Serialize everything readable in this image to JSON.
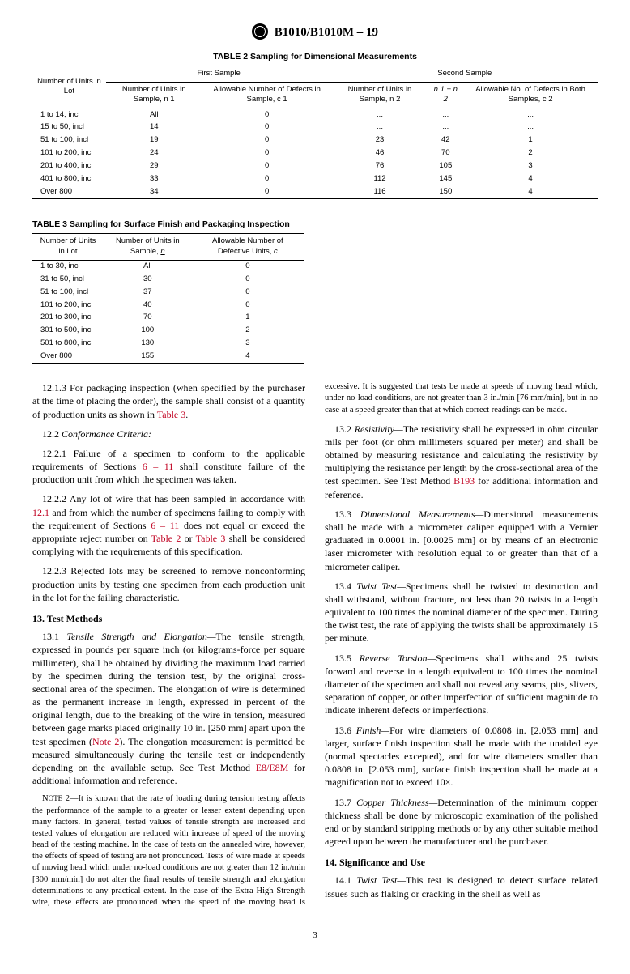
{
  "header": "B1010/B1010M – 19",
  "table2": {
    "caption": "TABLE 2 Sampling for Dimensional Measurements",
    "group_first": "First Sample",
    "group_second": "Second Sample",
    "cols": {
      "lot": "Number of Units in Lot",
      "n1": "Number of Units in Sample, n 1",
      "c1": "Allowable Number of Defects in Sample, c 1",
      "n2": "Number of Units in Sample, n 2",
      "n1n2": "n 1 + n 2",
      "c2": "Allowable No. of Defects in Both Samples, c 2"
    },
    "rows": [
      {
        "lot": "1 to 14, incl",
        "n1": "All",
        "c1": "0",
        "n2": "...",
        "n1n2": "...",
        "c2": "..."
      },
      {
        "lot": "15 to 50, incl",
        "n1": "14",
        "c1": "0",
        "n2": "...",
        "n1n2": "...",
        "c2": "..."
      },
      {
        "lot": "51 to 100, incl",
        "n1": "19",
        "c1": "0",
        "n2": "23",
        "n1n2": "42",
        "c2": "1"
      },
      {
        "lot": "101 to 200, incl",
        "n1": "24",
        "c1": "0",
        "n2": "46",
        "n1n2": "70",
        "c2": "2"
      },
      {
        "lot": "201 to 400, incl",
        "n1": "29",
        "c1": "0",
        "n2": "76",
        "n1n2": "105",
        "c2": "3"
      },
      {
        "lot": "401 to 800, incl",
        "n1": "33",
        "c1": "0",
        "n2": "112",
        "n1n2": "145",
        "c2": "4"
      },
      {
        "lot": "Over 800",
        "n1": "34",
        "c1": "0",
        "n2": "116",
        "n1n2": "150",
        "c2": "4"
      }
    ]
  },
  "table3": {
    "caption": "TABLE 3 Sampling for Surface Finish and Packaging Inspection",
    "cols": {
      "lot": "Number of Units in Lot",
      "n": "Number of Units in Sample, ",
      "n_i": "n",
      "c": "Allowable Number of Defective Units, ",
      "c_i": "c"
    },
    "rows": [
      {
        "lot": "1 to 30, incl",
        "n": "All",
        "c": "0"
      },
      {
        "lot": "31 to 50, incl",
        "n": "30",
        "c": "0"
      },
      {
        "lot": "51 to 100, incl",
        "n": "37",
        "c": "0"
      },
      {
        "lot": "101 to 200, incl",
        "n": "40",
        "c": "0"
      },
      {
        "lot": "201 to 300, incl",
        "n": "70",
        "c": "1"
      },
      {
        "lot": "301 to 500, incl",
        "n": "100",
        "c": "2"
      },
      {
        "lot": "501 to 800, incl",
        "n": "130",
        "c": "3"
      },
      {
        "lot": "Over 800",
        "n": "155",
        "c": "4"
      }
    ]
  },
  "body": {
    "p1": "12.1.3 For packaging inspection (when specified by the purchaser at the time of placing the order), the sample shall consist of a quantity of production units as shown in ",
    "p1_link": "Table 3",
    "p1_end": ".",
    "p2_head": "12.2 ",
    "p2_italic": "Conformance Criteria:",
    "p3a": "12.2.1 Failure of a specimen to conform to the applicable requirements of Sections ",
    "p3_link": "6 – 11",
    "p3b": " shall constitute failure of the production unit from which the specimen was taken.",
    "p4a": "12.2.2 Any lot of wire that has been sampled in accordance with ",
    "p4_l1": "12.1",
    "p4b": " and from which the number of specimens failing to comply with the requirement of Sections ",
    "p4_l2": "6 – 11",
    "p4c": " does not equal or exceed the appropriate reject number on ",
    "p4_l3": "Table 2",
    "p4d": " or ",
    "p4_l4": "Table 3",
    "p4e": " shall be considered complying with the requirements of this specification.",
    "p5": "12.2.3 Rejected lots may be screened to remove nonconforming production units by testing one specimen from each production unit in the lot for the failing characteristic.",
    "s13": "13. Test Methods",
    "p13_1a": "13.1 ",
    "p13_1i": "Tensile Strength and Elongation—",
    "p13_1b": "The tensile strength, expressed in pounds per square inch (or kilograms-force per square millimeter), shall be obtained by dividing the maximum load carried by the specimen during the tension test, by the original cross-sectional area of the specimen. The elongation of wire is determined as the permanent increase in length, expressed in percent of the original length, due to the breaking of the wire in tension, measured between gage marks placed originally 10 in. [250 mm] apart upon the test specimen (",
    "p13_1_link": "Note 2",
    "p13_1c": "). The elongation measurement is permitted be measured simultaneously during the tensile test or independently depending on the available setup. See Test Method ",
    "p13_1_link2": "E8/E8M",
    "p13_1d": " for additional information and reference.",
    "note2_h": "Note 2—",
    "note2": "It is known that the rate of loading during tension testing affects the performance of the sample to a greater or lesser extent depending upon many factors. In general, tested values of tensile strength are increased and tested values of elongation are reduced with increase of ",
    "note2_cont": "speed of the moving head of the testing machine. In the case of tests on the annealed wire, however, the effects of speed of testing are not pronounced. Tests of wire made at speeds of moving head which under no-load conditions are not greater than 12 in./min [300 mm/min] do not alter the final results of tensile strength and elongation determinations to any practical extent. In the case of the Extra High Strength wire, these effects are pronounced when the speed of the moving head is excessive. It is suggested that tests be made at speeds of moving head which, under no-load conditions, are not greater than 3 in./min [76 mm/min], but in no case at a speed greater than that at which correct readings can be made.",
    "p13_2a": "13.2 ",
    "p13_2i": "Resistivity—",
    "p13_2b": "The resistivity shall be expressed in ohm circular mils per foot (or ohm millimeters squared per meter) and shall be obtained by measuring resistance and calculating the resistivity by multiplying the resistance per length by the cross-sectional area of the test specimen. See Test Method ",
    "p13_2_link": "B193",
    "p13_2c": " for additional information and reference.",
    "p13_3a": "13.3 ",
    "p13_3i": "Dimensional Measurements—",
    "p13_3b": "Dimensional measurements shall be made with a micrometer caliper equipped with a Vernier graduated in 0.0001 in. [0.0025 mm] or by means of an electronic laser micrometer with resolution equal to or greater than that of a micrometer caliper.",
    "p13_4a": "13.4 ",
    "p13_4i": "Twist Test—",
    "p13_4b": "Specimens shall be twisted to destruction and shall withstand, without fracture, not less than 20 twists in a length equivalent to 100 times the nominal diameter of the specimen. During the twist test, the rate of applying the twists shall be approximately 15 per minute.",
    "p13_5a": "13.5 ",
    "p13_5i": "Reverse Torsion—",
    "p13_5b": "Specimens shall withstand 25 twists forward and reverse in a length equivalent to 100 times the nominal diameter of the specimen and shall not reveal any seams, pits, slivers, separation of copper, or other imperfection of sufficient magnitude to indicate inherent defects or imperfections.",
    "p13_6a": "13.6 ",
    "p13_6i": "Finish—",
    "p13_6b": "For wire diameters of 0.0808 in. [2.053 mm] and larger, surface finish inspection shall be made with the unaided eye (normal spectacles excepted), and for wire diameters smaller than 0.0808 in. [2.053 mm], surface finish inspection shall be made at a magnification not to exceed 10×.",
    "p13_7a": "13.7 ",
    "p13_7i": "Copper Thickness—",
    "p13_7b": "Determination of the minimum copper thickness shall be done by microscopic examination of the polished end or by standard stripping methods or by any other suitable method agreed upon between the manufacturer and the purchaser.",
    "s14": "14. Significance and Use",
    "p14_1a": "14.1 ",
    "p14_1i": "Twist Test—",
    "p14_1b": "This test is designed to detect surface related issues such as flaking or cracking in the shell as well as"
  },
  "pagenum": "3"
}
